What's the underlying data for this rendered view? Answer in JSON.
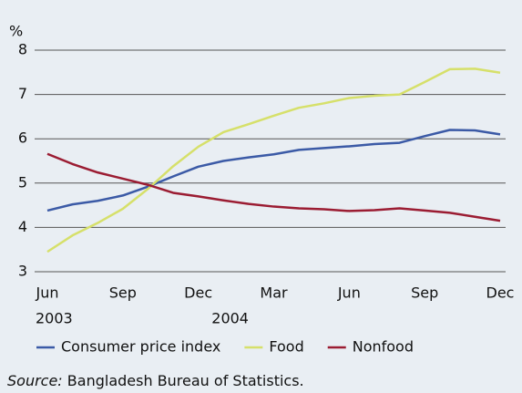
{
  "chart_data": {
    "type": "line",
    "y_label": "%",
    "categories": [
      "Jun",
      null,
      null,
      "Sep",
      null,
      null,
      "Dec",
      null,
      null,
      "Mar",
      null,
      null,
      "Jun",
      null,
      null,
      "Sep",
      null,
      null,
      "Dec"
    ],
    "year_labels": [
      {
        "label": "2003",
        "start": 0
      },
      {
        "label": "2004",
        "start": 7
      }
    ],
    "series": [
      {
        "name": "Consumer price index",
        "color": "#3b5aa6",
        "values": [
          4.38,
          4.52,
          4.6,
          4.72,
          4.92,
          5.15,
          5.37,
          5.5,
          5.58,
          5.65,
          5.75,
          5.79,
          5.83,
          5.88,
          5.91,
          6.06,
          6.2,
          6.19,
          6.1
        ]
      },
      {
        "name": "Food",
        "color": "#d6e06a",
        "values": [
          3.45,
          3.82,
          4.1,
          4.42,
          4.87,
          5.38,
          5.82,
          6.15,
          6.33,
          6.52,
          6.7,
          6.8,
          6.92,
          6.97,
          7.0,
          7.28,
          7.57,
          7.58,
          7.49
        ]
      },
      {
        "name": "Nonfood",
        "color": "#9b1c32",
        "values": [
          5.66,
          5.43,
          5.24,
          5.1,
          4.96,
          4.78,
          4.7,
          4.61,
          4.53,
          4.47,
          4.43,
          4.41,
          4.37,
          4.39,
          4.43,
          4.38,
          4.33,
          4.24,
          4.15
        ]
      }
    ],
    "ylim": [
      3,
      8
    ],
    "yticks": [
      3,
      4,
      5,
      6,
      7,
      8
    ],
    "grid": true,
    "legend": "bottom",
    "source": {
      "label": "Source:",
      "text": "Bangladesh Bureau of Statistics."
    }
  }
}
